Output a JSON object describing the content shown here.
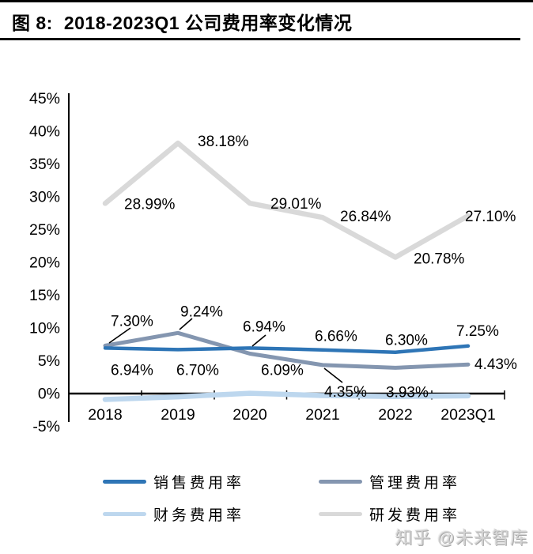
{
  "header": {
    "figure_label": "图 8:",
    "title": "2018-2023Q1 公司费用率变化情况"
  },
  "chart_data": {
    "type": "line",
    "title": "2018-2023Q1 公司费用率变化情况",
    "categories": [
      "2018",
      "2019",
      "2020",
      "2021",
      "2022",
      "2023Q1"
    ],
    "series": [
      {
        "name": "销售费用率",
        "color": "#2E75B6",
        "values": [
          6.94,
          6.7,
          6.94,
          6.66,
          6.3,
          7.25
        ],
        "labels": [
          "6.94%",
          "6.70%",
          "6.94%",
          "6.66%",
          "6.30%",
          "7.25%"
        ]
      },
      {
        "name": "管理费用率",
        "color": "#8496B0",
        "values": [
          7.3,
          9.24,
          6.09,
          4.35,
          3.93,
          4.43
        ],
        "labels": [
          "7.30%",
          "9.24%",
          "6.09%",
          "4.35%",
          "3.93%",
          "4.43%"
        ]
      },
      {
        "name": "财务费用率",
        "color": "#BDD7EE",
        "values": [
          -0.9,
          -0.5,
          0.05,
          -0.3,
          -0.45,
          -0.35
        ],
        "labels": null
      },
      {
        "name": "研发费用率",
        "color": "#D9D9D9",
        "values": [
          28.99,
          38.18,
          29.01,
          26.84,
          20.78,
          27.1
        ],
        "labels": [
          "28.99%",
          "38.18%",
          "29.01%",
          "26.84%",
          "20.78%",
          "27.10%"
        ]
      }
    ],
    "ylim": [
      -5,
      45
    ],
    "ytick_step": 5,
    "ytick_labels": [
      "45%",
      "40%",
      "35%",
      "30%",
      "25%",
      "20%",
      "15%",
      "10%",
      "5%",
      "0%",
      "-5%"
    ],
    "grid": false,
    "legend_position": "bottom",
    "axis_color": "#000000",
    "label_color": "#000000"
  },
  "watermark": "知乎 @未来智库"
}
